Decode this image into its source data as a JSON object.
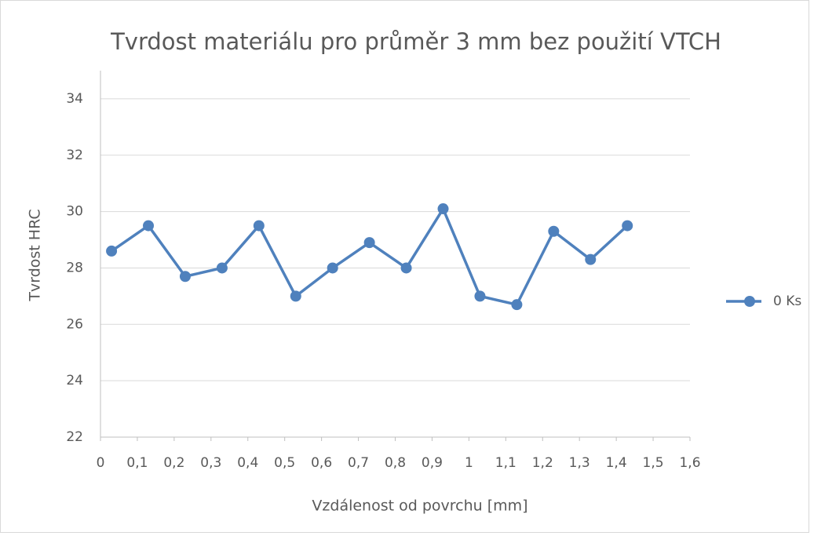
{
  "chart_data": {
    "type": "line",
    "title": "Tvrdost materiálu pro průměr 3 mm bez použití VTCH",
    "x_label": "Vzdálenost od povrchu [mm]",
    "y_label": "Tvrdost HRC",
    "x": [
      0.03,
      0.13,
      0.23,
      0.33,
      0.43,
      0.53,
      0.63,
      0.73,
      0.83,
      0.93,
      1.03,
      1.13,
      1.23,
      1.33,
      1.43
    ],
    "series": [
      {
        "name": "0 Ks",
        "color": "#4f81bd",
        "values": [
          28.6,
          29.5,
          27.7,
          28.0,
          29.5,
          27.0,
          28.0,
          28.9,
          28.0,
          30.1,
          27.0,
          26.7,
          29.3,
          28.3,
          29.5
        ]
      }
    ],
    "xlim": [
      0,
      1.6
    ],
    "xticks": [
      0,
      {
        "value": 0.1,
        "label": "0,1"
      },
      {
        "value": 0.2,
        "label": "0,2"
      },
      {
        "value": 0.3,
        "label": "0,3"
      },
      {
        "value": 0.4,
        "label": "0,4"
      },
      {
        "value": 0.5,
        "label": "0,5"
      },
      {
        "value": 0.6,
        "label": "0,6"
      },
      {
        "value": 0.7,
        "label": "0,7"
      },
      {
        "value": 0.8,
        "label": "0,8"
      },
      {
        "value": 0.9,
        "label": "0,9"
      },
      1,
      {
        "value": 1.1,
        "label": "1,1"
      },
      {
        "value": 1.2,
        "label": "1,2"
      },
      {
        "value": 1.3,
        "label": "1,3"
      },
      {
        "value": 1.4,
        "label": "1,4"
      },
      {
        "value": 1.5,
        "label": "1,5"
      },
      {
        "value": 1.6,
        "label": "1,6"
      }
    ],
    "ylim": [
      22,
      35
    ],
    "yticks": [
      22,
      24,
      26,
      28,
      30,
      32,
      34
    ],
    "grid": true,
    "legend": "right"
  }
}
